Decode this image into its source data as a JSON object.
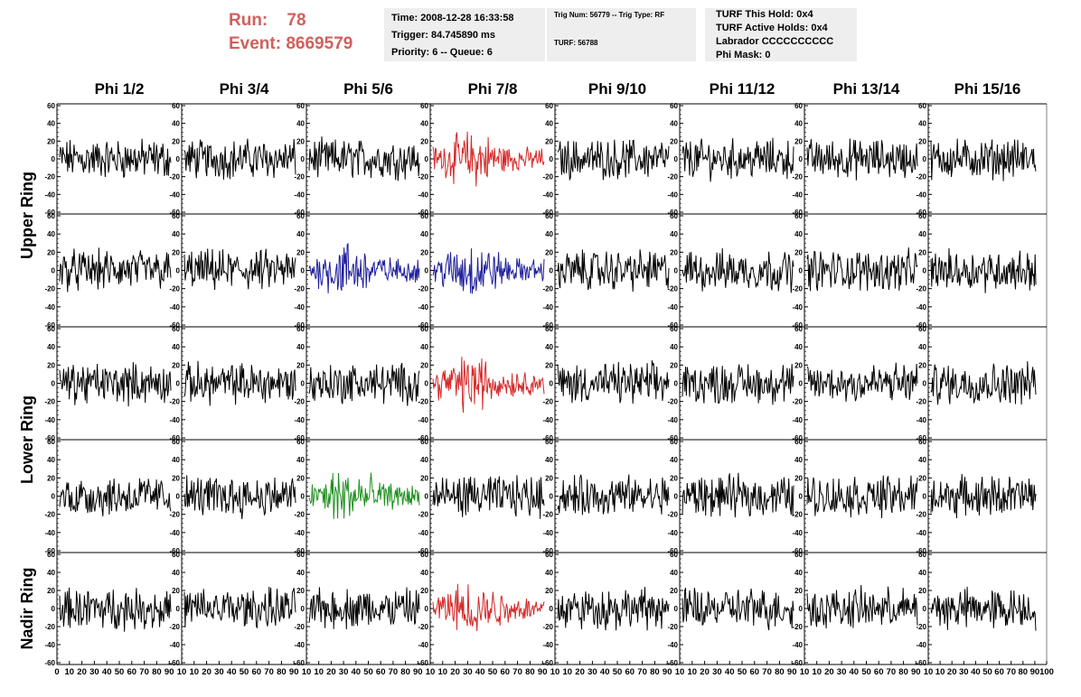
{
  "run_label": "Run:",
  "run_value": "78",
  "event_label": "Event:",
  "event_value": "8669579",
  "info_box_1": {
    "line1": "Time: 2008-12-28 16:33:58",
    "line2": "Trigger: 84.745890 ms",
    "line3": "Priority: 6 -- Queue: 6"
  },
  "info_box_2": {
    "line1": "Trig Num: 56779 -- Trig Type: RF",
    "line2": "TURF: 56788"
  },
  "info_box_3": {
    "line1": "TURF This Hold: 0x4",
    "line2": "TURF Active Holds: 0x4",
    "line3": "Labrador CCCCCCCCCC",
    "line4": "Phi Mask: 0"
  },
  "colors": {
    "normal": "#000000",
    "red": "#d62728",
    "blue": "#1f1f9c",
    "green": "#1e8f1e",
    "header_text": "#d0605e"
  },
  "chart_data": {
    "type": "line",
    "columns": [
      "Phi 1/2",
      "Phi 3/4",
      "Phi 5/6",
      "Phi 7/8",
      "Phi 9/10",
      "Phi 11/12",
      "Phi 13/14",
      "Phi 15/16"
    ],
    "ring_labels": [
      {
        "text": "Upper Ring",
        "rows": [
          0,
          1
        ]
      },
      {
        "text": "Lower Ring",
        "rows": [
          2,
          3
        ]
      },
      {
        "text": "Nadir Ring",
        "rows": [
          4
        ]
      }
    ],
    "rows": 5,
    "ylim": [
      -60,
      60
    ],
    "yticks": [
      -60,
      -40,
      -20,
      0,
      20,
      40,
      60
    ],
    "xlim": [
      0,
      100
    ],
    "xticks": [
      0,
      10,
      20,
      30,
      40,
      50,
      60,
      70,
      80,
      90,
      100
    ],
    "x_tick_labels_left_col": [
      "0",
      "10",
      "20",
      "30",
      "40",
      "50",
      "60",
      "70",
      "80",
      "90",
      "10"
    ],
    "x_tick_labels_mid_col": [
      "10",
      "20",
      "30",
      "40",
      "50",
      "60",
      "70",
      "80",
      "90",
      "10"
    ],
    "x_tick_labels_last_col": [
      "10",
      "20",
      "30",
      "40",
      "50",
      "60",
      "70",
      "80",
      "90",
      "100"
    ],
    "highlighted_panels": [
      {
        "row": 0,
        "col": 3,
        "color": "red"
      },
      {
        "row": 1,
        "col": 2,
        "color": "blue"
      },
      {
        "row": 1,
        "col": 3,
        "color": "blue"
      },
      {
        "row": 2,
        "col": 3,
        "color": "red"
      },
      {
        "row": 3,
        "col": 2,
        "color": "green"
      },
      {
        "row": 4,
        "col": 3,
        "color": "red"
      }
    ],
    "waveform_amplitude_approx": 25
  }
}
